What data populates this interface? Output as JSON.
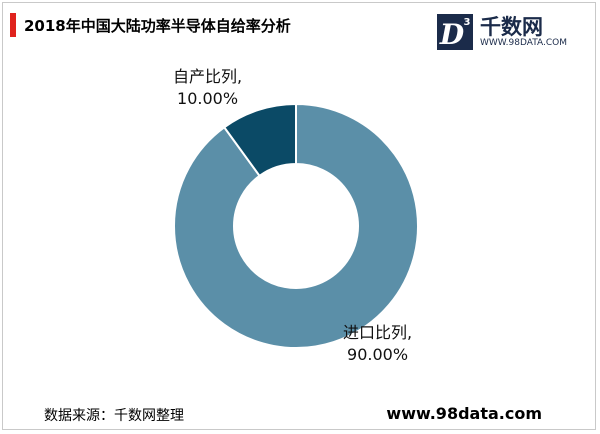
{
  "title": "2018年中国大陆功率半导体自给率分析",
  "logo": {
    "badge_letter": "D",
    "badge_sup": "3",
    "name": "千数网",
    "url": "WWW.98DATA.COM"
  },
  "chart_data": {
    "type": "pie",
    "donut": true,
    "slices": [
      {
        "label": "进口比列,",
        "value": 90.0,
        "value_label": "90.00%",
        "color": "#5b8fa8"
      },
      {
        "label": "自产比列,",
        "value": 10.0,
        "value_label": "10.00%",
        "color": "#0b4a66"
      }
    ]
  },
  "footer": {
    "source": "数据来源：千数网整理",
    "site": "www.98data.com"
  }
}
